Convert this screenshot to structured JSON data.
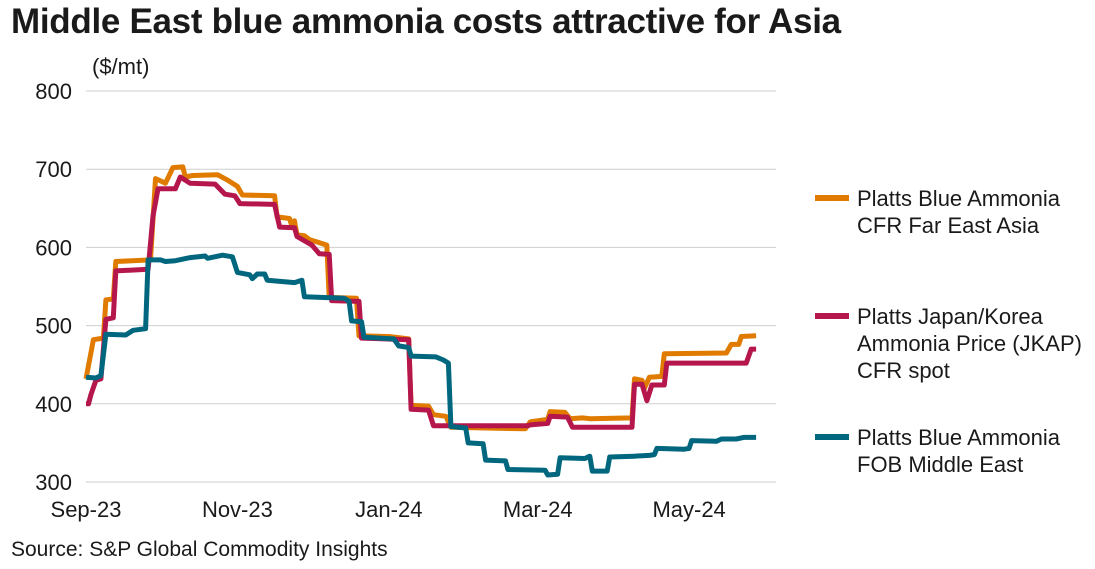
{
  "title": "Middle East blue ammonia costs attractive for Asia",
  "unit_label": "($/mt)",
  "source": "Source: S&P Global Commodity Insights",
  "chart_data": {
    "type": "line",
    "ylim": [
      300,
      800
    ],
    "yticks": [
      300,
      400,
      500,
      600,
      700,
      800
    ],
    "xrange": [
      "2023-09-01",
      "2024-06-05"
    ],
    "xticks": [
      {
        "label": "Sep-23",
        "date": "2023-09-01"
      },
      {
        "label": "Nov-23",
        "date": "2023-11-01"
      },
      {
        "label": "Jan-24",
        "date": "2024-01-01"
      },
      {
        "label": "Mar-24",
        "date": "2024-03-01"
      },
      {
        "label": "May-24",
        "date": "2024-05-01"
      }
    ],
    "grid": "horizontal",
    "legend_position": "right",
    "series": [
      {
        "name": "Platts Blue Ammonia CFR Far East Asia",
        "color": "#e07b00",
        "points": [
          [
            "2023-09-01",
            432
          ],
          [
            "2023-09-04",
            482
          ],
          [
            "2023-09-08",
            484
          ],
          [
            "2023-09-09",
            533
          ],
          [
            "2023-09-12",
            534
          ],
          [
            "2023-09-13",
            582
          ],
          [
            "2023-09-27",
            584
          ],
          [
            "2023-09-29",
            688
          ],
          [
            "2023-10-01",
            685
          ],
          [
            "2023-10-03",
            682
          ],
          [
            "2023-10-06",
            702
          ],
          [
            "2023-10-10",
            703
          ],
          [
            "2023-10-11",
            690
          ],
          [
            "2023-10-14",
            692
          ],
          [
            "2023-10-24",
            693
          ],
          [
            "2023-10-28",
            686
          ],
          [
            "2023-11-01",
            678
          ],
          [
            "2023-11-03",
            667
          ],
          [
            "2023-11-16",
            666
          ],
          [
            "2023-11-17",
            639
          ],
          [
            "2023-11-22",
            637
          ],
          [
            "2023-11-23",
            627
          ],
          [
            "2023-11-24",
            634
          ],
          [
            "2023-11-25",
            616
          ],
          [
            "2023-11-28",
            615
          ],
          [
            "2023-11-30",
            610
          ],
          [
            "2023-12-03",
            607
          ],
          [
            "2023-12-07",
            603
          ],
          [
            "2023-12-08",
            536
          ],
          [
            "2023-12-19",
            535
          ],
          [
            "2023-12-20",
            487
          ],
          [
            "2024-01-01",
            486
          ],
          [
            "2024-01-09",
            483
          ],
          [
            "2024-01-10",
            398
          ],
          [
            "2024-01-17",
            397
          ],
          [
            "2024-01-19",
            386
          ],
          [
            "2024-01-24",
            384
          ],
          [
            "2024-01-26",
            370
          ],
          [
            "2024-02-25",
            368
          ],
          [
            "2024-02-27",
            377
          ],
          [
            "2024-03-05",
            380
          ],
          [
            "2024-03-06",
            390
          ],
          [
            "2024-03-12",
            389
          ],
          [
            "2024-03-14",
            381
          ],
          [
            "2024-03-19",
            382
          ],
          [
            "2024-03-22",
            381
          ],
          [
            "2024-04-08",
            382
          ],
          [
            "2024-04-09",
            432
          ],
          [
            "2024-04-12",
            430
          ],
          [
            "2024-04-13",
            420
          ],
          [
            "2024-04-15",
            434
          ],
          [
            "2024-04-20",
            435
          ],
          [
            "2024-04-21",
            464
          ],
          [
            "2024-05-16",
            465
          ],
          [
            "2024-05-18",
            476
          ],
          [
            "2024-05-21",
            476
          ],
          [
            "2024-05-22",
            486
          ],
          [
            "2024-05-28",
            487
          ]
        ]
      },
      {
        "name": "Platts Japan/Korea Ammonia Price (JKAP) CFR spot",
        "color": "#b5174d",
        "points": [
          [
            "2023-09-01",
            400
          ],
          [
            "2023-09-02",
            400
          ],
          [
            "2023-09-03",
            412
          ],
          [
            "2023-09-05",
            430
          ],
          [
            "2023-09-07",
            432
          ],
          [
            "2023-09-09",
            508
          ],
          [
            "2023-09-12",
            510
          ],
          [
            "2023-09-13",
            570
          ],
          [
            "2023-09-26",
            572
          ],
          [
            "2023-09-28",
            640
          ],
          [
            "2023-09-30",
            675
          ],
          [
            "2023-10-07",
            675
          ],
          [
            "2023-10-09",
            690
          ],
          [
            "2023-10-13",
            682
          ],
          [
            "2023-10-23",
            681
          ],
          [
            "2023-10-27",
            668
          ],
          [
            "2023-10-31",
            666
          ],
          [
            "2023-11-02",
            656
          ],
          [
            "2023-11-16",
            655
          ],
          [
            "2023-11-18",
            626
          ],
          [
            "2023-11-24",
            625
          ],
          [
            "2023-11-25",
            614
          ],
          [
            "2023-12-01",
            603
          ],
          [
            "2023-12-04",
            592
          ],
          [
            "2023-12-08",
            591
          ],
          [
            "2023-12-09",
            532
          ],
          [
            "2023-12-20",
            531
          ],
          [
            "2023-12-21",
            484
          ],
          [
            "2024-01-09",
            482
          ],
          [
            "2024-01-10",
            393
          ],
          [
            "2024-01-17",
            392
          ],
          [
            "2024-01-19",
            372
          ],
          [
            "2024-02-26",
            372
          ],
          [
            "2024-02-27",
            373
          ],
          [
            "2024-03-05",
            375
          ],
          [
            "2024-03-06",
            384
          ],
          [
            "2024-03-13",
            383
          ],
          [
            "2024-03-15",
            370
          ],
          [
            "2024-04-08",
            370
          ],
          [
            "2024-04-09",
            425
          ],
          [
            "2024-04-12",
            425
          ],
          [
            "2024-04-14",
            404
          ],
          [
            "2024-04-16",
            424
          ],
          [
            "2024-04-21",
            424
          ],
          [
            "2024-04-22",
            452
          ],
          [
            "2024-05-24",
            452
          ],
          [
            "2024-05-26",
            470
          ],
          [
            "2024-05-28",
            470
          ]
        ]
      },
      {
        "name": "Platts Blue Ammonia FOB Middle East",
        "color": "#00677f",
        "points": [
          [
            "2023-09-01",
            434
          ],
          [
            "2023-09-05",
            433
          ],
          [
            "2023-09-07",
            436
          ],
          [
            "2023-09-09",
            489
          ],
          [
            "2023-09-17",
            488
          ],
          [
            "2023-09-20",
            494
          ],
          [
            "2023-09-25",
            496
          ],
          [
            "2023-09-26",
            584
          ],
          [
            "2023-10-01",
            584
          ],
          [
            "2023-10-03",
            582
          ],
          [
            "2023-10-07",
            583
          ],
          [
            "2023-10-13",
            587
          ],
          [
            "2023-10-19",
            589
          ],
          [
            "2023-10-20",
            586
          ],
          [
            "2023-10-26",
            590
          ],
          [
            "2023-10-30",
            588
          ],
          [
            "2023-11-01",
            568
          ],
          [
            "2023-11-06",
            565
          ],
          [
            "2023-11-07",
            560
          ],
          [
            "2023-11-09",
            566
          ],
          [
            "2023-11-12",
            566
          ],
          [
            "2023-11-13",
            558
          ],
          [
            "2023-11-24",
            555
          ],
          [
            "2023-11-27",
            558
          ],
          [
            "2023-11-28",
            537
          ],
          [
            "2023-12-14",
            535
          ],
          [
            "2023-12-16",
            531
          ],
          [
            "2023-12-17",
            506
          ],
          [
            "2023-12-21",
            505
          ],
          [
            "2023-12-22",
            485
          ],
          [
            "2024-01-03",
            483
          ],
          [
            "2024-01-05",
            474
          ],
          [
            "2024-01-09",
            472
          ],
          [
            "2024-01-10",
            461
          ],
          [
            "2024-01-20",
            460
          ],
          [
            "2024-01-23",
            456
          ],
          [
            "2024-01-25",
            452
          ],
          [
            "2024-01-26",
            371
          ],
          [
            "2024-02-01",
            369
          ],
          [
            "2024-02-02",
            350
          ],
          [
            "2024-02-08",
            349
          ],
          [
            "2024-02-09",
            328
          ],
          [
            "2024-02-17",
            327
          ],
          [
            "2024-02-18",
            316
          ],
          [
            "2024-03-04",
            315
          ],
          [
            "2024-03-05",
            309
          ],
          [
            "2024-03-09",
            310
          ],
          [
            "2024-03-10",
            331
          ],
          [
            "2024-03-20",
            330
          ],
          [
            "2024-03-22",
            333
          ],
          [
            "2024-03-23",
            314
          ],
          [
            "2024-03-29",
            314
          ],
          [
            "2024-03-30",
            332
          ],
          [
            "2024-04-09",
            333
          ],
          [
            "2024-04-15",
            334
          ],
          [
            "2024-04-17",
            335
          ],
          [
            "2024-04-18",
            343
          ],
          [
            "2024-04-29",
            342
          ],
          [
            "2024-05-01",
            343
          ],
          [
            "2024-05-02",
            353
          ],
          [
            "2024-05-12",
            352
          ],
          [
            "2024-05-14",
            355
          ],
          [
            "2024-05-20",
            355
          ],
          [
            "2024-05-23",
            357
          ],
          [
            "2024-05-28",
            357
          ]
        ]
      }
    ]
  }
}
